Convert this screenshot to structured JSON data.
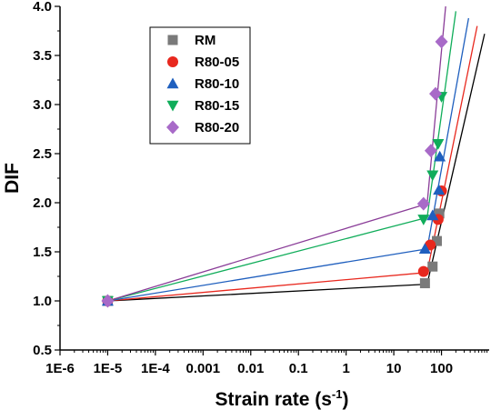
{
  "chart_data": {
    "type": "scatter",
    "xlabel": "Strain rate (s",
    "xlabel_exponent": "-1",
    "xlabel_suffix": ")",
    "ylabel": "DIF",
    "xscale": "log",
    "xlim": [
      1e-06,
      1000
    ],
    "ylim": [
      0.5,
      4.0
    ],
    "x_ticks": [
      {
        "value": 1e-06,
        "label": "1E-6"
      },
      {
        "value": 1e-05,
        "label": "1E-5"
      },
      {
        "value": 0.0001,
        "label": "1E-4"
      },
      {
        "value": 0.001,
        "label": "0.001"
      },
      {
        "value": 0.01,
        "label": "0.01"
      },
      {
        "value": 0.1,
        "label": "0.1"
      },
      {
        "value": 1,
        "label": "1"
      },
      {
        "value": 10,
        "label": "10"
      },
      {
        "value": 100,
        "label": "100"
      }
    ],
    "y_ticks": [
      {
        "value": 0.5,
        "label": "0.5"
      },
      {
        "value": 1.0,
        "label": "1.0"
      },
      {
        "value": 1.5,
        "label": "1.5"
      },
      {
        "value": 2.0,
        "label": "2.0"
      },
      {
        "value": 2.5,
        "label": "2.5"
      },
      {
        "value": 3.0,
        "label": "3.0"
      },
      {
        "value": 3.5,
        "label": "3.5"
      },
      {
        "value": 4.0,
        "label": "4.0"
      }
    ],
    "grid": false,
    "legend_position": "top-left",
    "series": [
      {
        "name": "RM",
        "marker": "square",
        "color": "#7a7a7a",
        "line_color": "#000000",
        "points": [
          {
            "x": 1e-05,
            "y": 1.0
          },
          {
            "x": 45,
            "y": 1.18
          },
          {
            "x": 65,
            "y": 1.35
          },
          {
            "x": 80,
            "y": 1.61
          },
          {
            "x": 90,
            "y": 1.89
          }
        ],
        "fit_lines": [
          {
            "from": {
              "x": 1e-05,
              "y": 1.0
            },
            "to": {
              "x": 50,
              "y": 1.17
            }
          },
          {
            "from": {
              "x": 50,
              "y": 1.17
            },
            "to": {
              "x": 800,
              "y": 3.72
            }
          }
        ]
      },
      {
        "name": "R80-05",
        "marker": "circle",
        "color": "#e8281e",
        "line_color": "#e8281e",
        "points": [
          {
            "x": 1e-05,
            "y": 1.0
          },
          {
            "x": 42,
            "y": 1.3
          },
          {
            "x": 58,
            "y": 1.57
          },
          {
            "x": 85,
            "y": 1.83
          },
          {
            "x": 100,
            "y": 2.12
          }
        ],
        "fit_lines": [
          {
            "from": {
              "x": 1e-05,
              "y": 1.0
            },
            "to": {
              "x": 50,
              "y": 1.29
            }
          },
          {
            "from": {
              "x": 50,
              "y": 1.29
            },
            "to": {
              "x": 560,
              "y": 3.8
            }
          }
        ]
      },
      {
        "name": "R80-10",
        "marker": "triangle-up",
        "color": "#1f5fbe",
        "line_color": "#1f5fbe",
        "points": [
          {
            "x": 1e-05,
            "y": 1.0
          },
          {
            "x": 45,
            "y": 1.53
          },
          {
            "x": 65,
            "y": 1.87
          },
          {
            "x": 88,
            "y": 2.13
          },
          {
            "x": 92,
            "y": 2.47
          }
        ],
        "fit_lines": [
          {
            "from": {
              "x": 1e-05,
              "y": 1.0
            },
            "to": {
              "x": 50,
              "y": 1.53
            }
          },
          {
            "from": {
              "x": 50,
              "y": 1.53
            },
            "to": {
              "x": 370,
              "y": 3.88
            }
          }
        ]
      },
      {
        "name": "R80-15",
        "marker": "triangle-down",
        "color": "#10ad5a",
        "line_color": "#10ad5a",
        "points": [
          {
            "x": 1e-05,
            "y": 1.0
          },
          {
            "x": 42,
            "y": 1.83
          },
          {
            "x": 65,
            "y": 2.28
          },
          {
            "x": 85,
            "y": 2.6
          },
          {
            "x": 100,
            "y": 3.08
          }
        ],
        "fit_lines": [
          {
            "from": {
              "x": 1e-05,
              "y": 1.0
            },
            "to": {
              "x": 50,
              "y": 1.85
            }
          },
          {
            "from": {
              "x": 50,
              "y": 1.85
            },
            "to": {
              "x": 200,
              "y": 3.95
            }
          }
        ]
      },
      {
        "name": "R80-20",
        "marker": "diamond",
        "color": "#a86ac8",
        "line_color": "#8a3d98",
        "points": [
          {
            "x": 1e-05,
            "y": 1.0
          },
          {
            "x": 42,
            "y": 1.99
          },
          {
            "x": 60,
            "y": 2.53
          },
          {
            "x": 75,
            "y": 3.11
          },
          {
            "x": 100,
            "y": 3.64
          }
        ],
        "fit_lines": [
          {
            "from": {
              "x": 1e-05,
              "y": 1.0
            },
            "to": {
              "x": 50,
              "y": 1.99
            }
          },
          {
            "from": {
              "x": 50,
              "y": 1.99
            },
            "to": {
              "x": 125,
              "y": 4.05
            }
          }
        ]
      }
    ]
  }
}
